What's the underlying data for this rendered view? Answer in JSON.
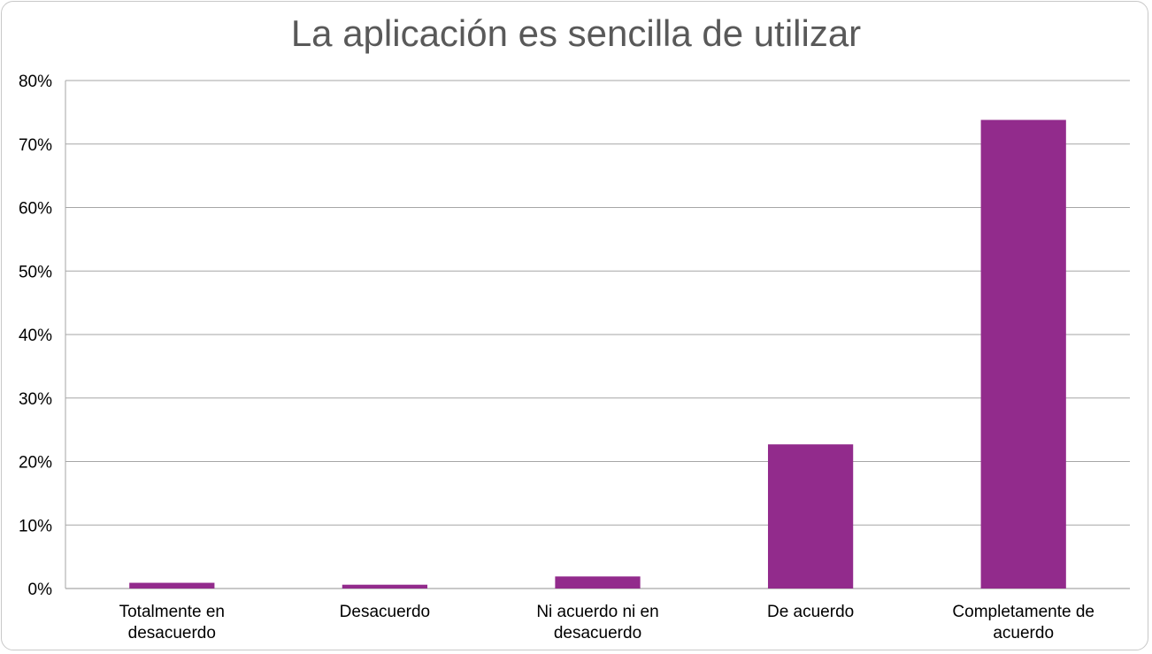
{
  "chart_data": {
    "type": "bar",
    "title": "La aplicación es sencilla de utilizar",
    "categories": [
      [
        "Totalmente en",
        "desacuerdo"
      ],
      [
        "Desacuerdo"
      ],
      [
        "Ni acuerdo ni en",
        "desacuerdo"
      ],
      [
        "De acuerdo"
      ],
      [
        "Completamente de",
        "acuerdo"
      ]
    ],
    "values": [
      0.9,
      0.6,
      1.9,
      22.7,
      73.8
    ],
    "ylim": [
      0,
      80
    ],
    "yticks": [
      "0%",
      "10%",
      "20%",
      "30%",
      "40%",
      "50%",
      "60%",
      "70%",
      "80%"
    ],
    "grid": true,
    "bar_color": "#922B8C",
    "grid_color": "#a6a6a6"
  }
}
